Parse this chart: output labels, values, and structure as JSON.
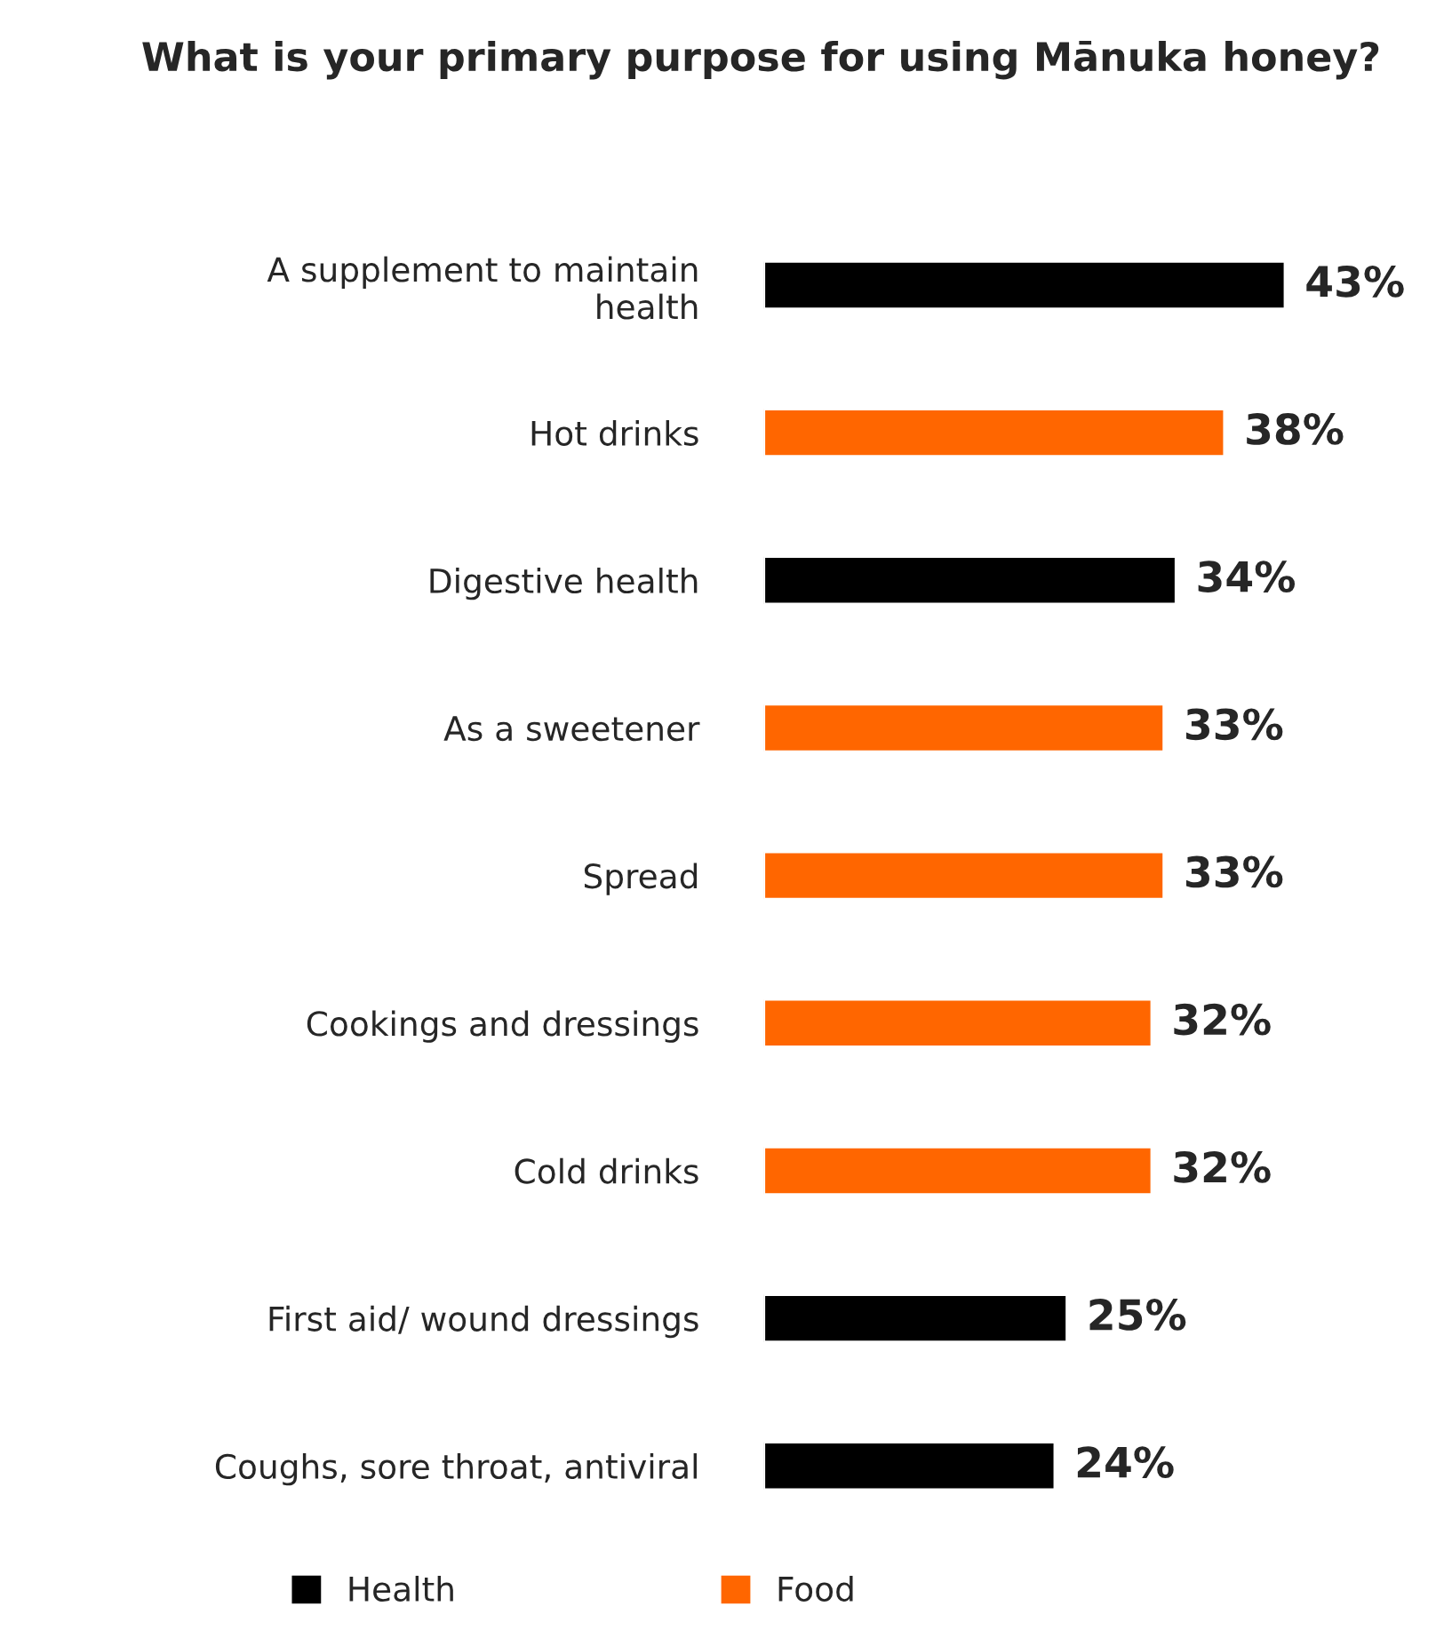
{
  "chart_data": {
    "type": "bar",
    "orientation": "horizontal",
    "title": "What is your primary purpose for using Mānuka honey?",
    "categories": [
      "A supplement to maintain\nhealth",
      "Hot drinks",
      "Digestive health",
      "As a sweetener",
      "Spread",
      "Cookings and dressings",
      "Cold drinks",
      "First aid/ wound dressings",
      "Coughs, sore throat, antiviral"
    ],
    "series": [
      {
        "name": "Health",
        "color": "#000000",
        "values": [
          43,
          null,
          34,
          null,
          null,
          null,
          null,
          25,
          24
        ],
        "value_labels": [
          "43%",
          null,
          "34%",
          null,
          null,
          null,
          null,
          "25%",
          "24%"
        ]
      },
      {
        "name": "Food",
        "color": "#ff6600",
        "values": [
          null,
          38,
          null,
          33,
          33,
          32,
          32,
          null,
          null
        ],
        "value_labels": [
          null,
          "38%",
          null,
          "33%",
          "33%",
          "32%",
          "32%",
          null,
          null
        ]
      }
    ],
    "legend": "bottom",
    "grid": false
  }
}
